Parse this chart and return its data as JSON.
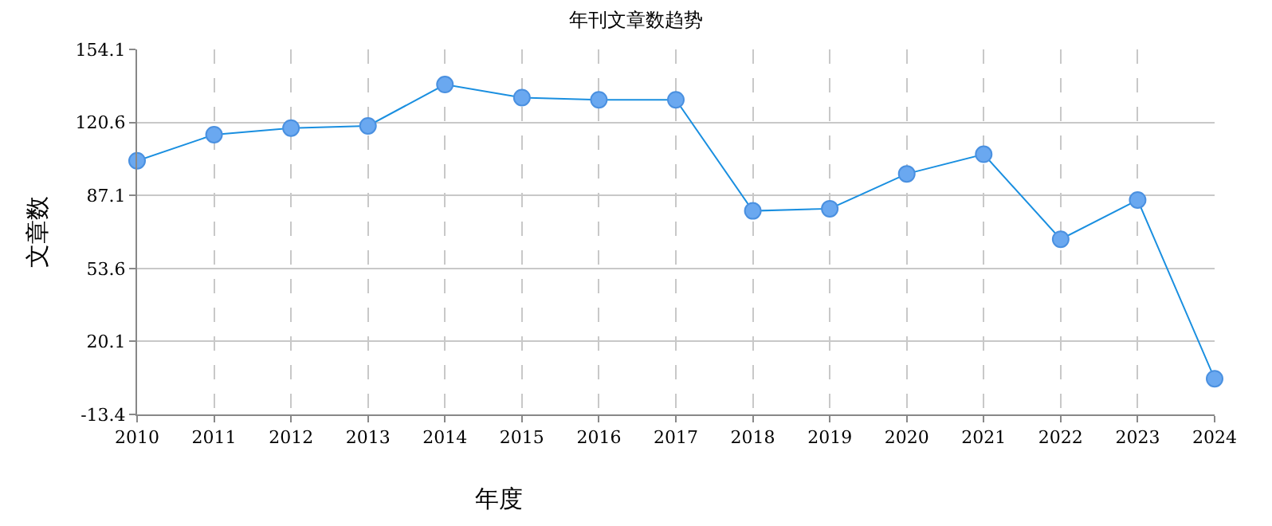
{
  "chart_data": {
    "type": "line",
    "title": "年刊文章数趋势",
    "xlabel": "年度",
    "ylabel": "文章数",
    "categories": [
      "2010",
      "2011",
      "2012",
      "2013",
      "2014",
      "2015",
      "2016",
      "2017",
      "2018",
      "2019",
      "2020",
      "2021",
      "2022",
      "2023",
      "2024"
    ],
    "series": [
      {
        "color": "#1a8fe0",
        "values": [
          103,
          115,
          118,
          119,
          138,
          132,
          131,
          131,
          80,
          81,
          97,
          106,
          67,
          85,
          3
        ]
      }
    ],
    "ylim": [
      -13.4,
      154.1
    ],
    "yticks": [
      -13.4,
      20.1,
      53.6,
      87.1,
      120.6,
      154.1
    ],
    "grid": true,
    "marker": "circle",
    "line_style": "solid",
    "legend": false
  }
}
